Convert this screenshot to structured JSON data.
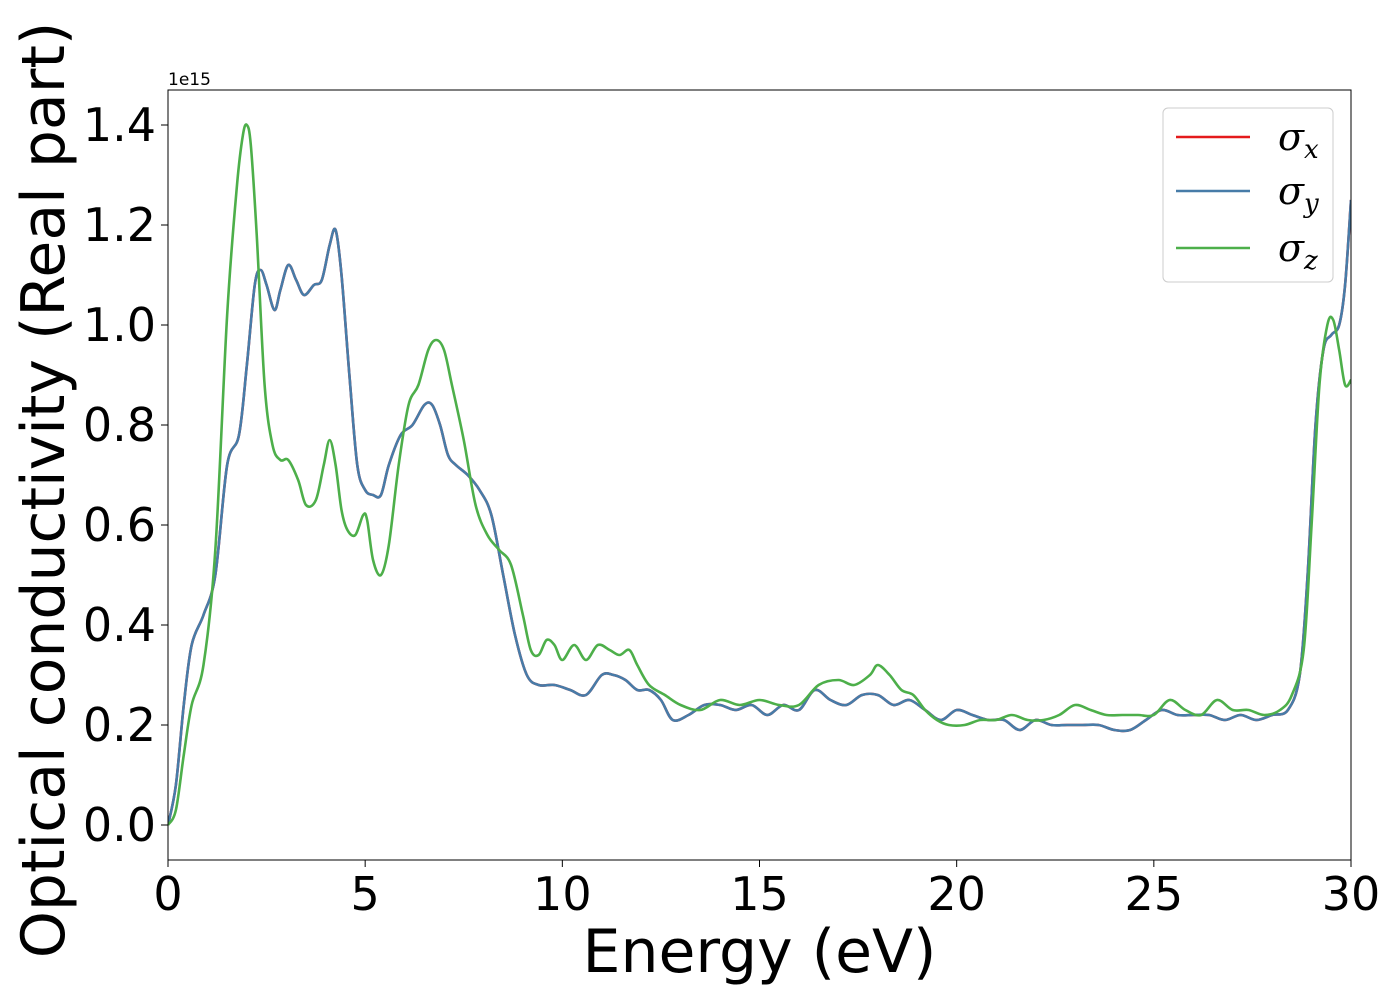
{
  "chart_data": {
    "type": "line",
    "xlabel": "Energy (eV)",
    "ylabel": "Optical conductivity (Real part)",
    "y_offset_label": "1e15",
    "xlim": [
      0,
      30
    ],
    "ylim": [
      -0.07,
      1.47
    ],
    "xticks": [
      0,
      5,
      10,
      15,
      20,
      25,
      30
    ],
    "xtick_labels": [
      "0",
      "5",
      "10",
      "15",
      "20",
      "25",
      "30"
    ],
    "yticks": [
      0.0,
      0.2,
      0.4,
      0.6,
      0.8,
      1.0,
      1.2,
      1.4
    ],
    "ytick_labels": [
      "0.0",
      "0.2",
      "0.4",
      "0.6",
      "0.8",
      "1.0",
      "1.2",
      "1.4"
    ],
    "grid": false,
    "legend_position": "top-right",
    "series": [
      {
        "name": "σx",
        "symbol": "σ",
        "subscript": "x",
        "color": "#e41a1c",
        "x": [
          0,
          0.2,
          0.4,
          0.6,
          0.9,
          1.2,
          1.5,
          1.8,
          2.0,
          2.2,
          2.35,
          2.5,
          2.7,
          2.85,
          3.05,
          3.25,
          3.45,
          3.7,
          3.9,
          4.1,
          4.25,
          4.4,
          4.6,
          4.8,
          5.0,
          5.2,
          5.4,
          5.6,
          5.9,
          6.2,
          6.5,
          6.7,
          6.9,
          7.1,
          7.3,
          7.6,
          7.9,
          8.2,
          8.5,
          8.8,
          9.1,
          9.4,
          9.8,
          10.2,
          10.6,
          11.0,
          11.3,
          11.6,
          11.9,
          12.2,
          12.5,
          12.8,
          13.2,
          13.6,
          14.0,
          14.4,
          14.8,
          15.2,
          15.6,
          16.0,
          16.4,
          16.8,
          17.2,
          17.6,
          18.0,
          18.4,
          18.8,
          19.2,
          19.6,
          20.0,
          20.4,
          20.8,
          21.2,
          21.6,
          22.0,
          22.4,
          22.8,
          23.2,
          23.6,
          24.0,
          24.4,
          24.8,
          25.2,
          25.6,
          26.0,
          26.4,
          26.8,
          27.2,
          27.6,
          28.0,
          28.4,
          28.7,
          28.9,
          29.1,
          29.3,
          29.5,
          29.7,
          29.85,
          30.0
        ],
        "y": [
          0.0,
          0.08,
          0.24,
          0.36,
          0.42,
          0.5,
          0.72,
          0.78,
          0.92,
          1.08,
          1.11,
          1.08,
          1.03,
          1.07,
          1.12,
          1.09,
          1.06,
          1.08,
          1.09,
          1.16,
          1.19,
          1.1,
          0.9,
          0.72,
          0.67,
          0.66,
          0.66,
          0.72,
          0.78,
          0.8,
          0.84,
          0.84,
          0.8,
          0.74,
          0.72,
          0.7,
          0.67,
          0.62,
          0.5,
          0.38,
          0.3,
          0.28,
          0.28,
          0.27,
          0.26,
          0.3,
          0.3,
          0.29,
          0.27,
          0.27,
          0.25,
          0.21,
          0.22,
          0.24,
          0.24,
          0.23,
          0.24,
          0.22,
          0.24,
          0.23,
          0.27,
          0.25,
          0.24,
          0.26,
          0.26,
          0.24,
          0.25,
          0.23,
          0.21,
          0.23,
          0.22,
          0.21,
          0.21,
          0.19,
          0.21,
          0.2,
          0.2,
          0.2,
          0.2,
          0.19,
          0.19,
          0.21,
          0.23,
          0.22,
          0.22,
          0.22,
          0.21,
          0.22,
          0.21,
          0.22,
          0.23,
          0.3,
          0.5,
          0.8,
          0.95,
          0.98,
          1.0,
          1.08,
          1.25
        ]
      },
      {
        "name": "σy",
        "symbol": "σ",
        "subscript": "y",
        "color": "#477ca8",
        "x": [
          0,
          0.2,
          0.4,
          0.6,
          0.9,
          1.2,
          1.5,
          1.8,
          2.0,
          2.2,
          2.35,
          2.5,
          2.7,
          2.85,
          3.05,
          3.25,
          3.45,
          3.7,
          3.9,
          4.1,
          4.25,
          4.4,
          4.6,
          4.8,
          5.0,
          5.2,
          5.4,
          5.6,
          5.9,
          6.2,
          6.5,
          6.7,
          6.9,
          7.1,
          7.3,
          7.6,
          7.9,
          8.2,
          8.5,
          8.8,
          9.1,
          9.4,
          9.8,
          10.2,
          10.6,
          11.0,
          11.3,
          11.6,
          11.9,
          12.2,
          12.5,
          12.8,
          13.2,
          13.6,
          14.0,
          14.4,
          14.8,
          15.2,
          15.6,
          16.0,
          16.4,
          16.8,
          17.2,
          17.6,
          18.0,
          18.4,
          18.8,
          19.2,
          19.6,
          20.0,
          20.4,
          20.8,
          21.2,
          21.6,
          22.0,
          22.4,
          22.8,
          23.2,
          23.6,
          24.0,
          24.4,
          24.8,
          25.2,
          25.6,
          26.0,
          26.4,
          26.8,
          27.2,
          27.6,
          28.0,
          28.4,
          28.7,
          28.9,
          29.1,
          29.3,
          29.5,
          29.7,
          29.85,
          30.0
        ],
        "y": [
          0.0,
          0.08,
          0.24,
          0.36,
          0.42,
          0.5,
          0.72,
          0.78,
          0.92,
          1.08,
          1.11,
          1.08,
          1.03,
          1.07,
          1.12,
          1.09,
          1.06,
          1.08,
          1.09,
          1.16,
          1.19,
          1.1,
          0.9,
          0.72,
          0.67,
          0.66,
          0.66,
          0.72,
          0.78,
          0.8,
          0.84,
          0.84,
          0.8,
          0.74,
          0.72,
          0.7,
          0.67,
          0.62,
          0.5,
          0.38,
          0.3,
          0.28,
          0.28,
          0.27,
          0.26,
          0.3,
          0.3,
          0.29,
          0.27,
          0.27,
          0.25,
          0.21,
          0.22,
          0.24,
          0.24,
          0.23,
          0.24,
          0.22,
          0.24,
          0.23,
          0.27,
          0.25,
          0.24,
          0.26,
          0.26,
          0.24,
          0.25,
          0.23,
          0.21,
          0.23,
          0.22,
          0.21,
          0.21,
          0.19,
          0.21,
          0.2,
          0.2,
          0.2,
          0.2,
          0.19,
          0.19,
          0.21,
          0.23,
          0.22,
          0.22,
          0.22,
          0.21,
          0.22,
          0.21,
          0.22,
          0.23,
          0.3,
          0.5,
          0.8,
          0.95,
          0.98,
          1.0,
          1.08,
          1.25
        ]
      },
      {
        "name": "σz",
        "symbol": "σ",
        "subscript": "z",
        "color": "#4daf4a",
        "x": [
          0,
          0.2,
          0.4,
          0.6,
          0.9,
          1.2,
          1.5,
          1.75,
          1.9,
          2.0,
          2.1,
          2.25,
          2.45,
          2.65,
          2.85,
          3.05,
          3.3,
          3.5,
          3.75,
          3.95,
          4.1,
          4.25,
          4.4,
          4.55,
          4.75,
          4.95,
          5.05,
          5.2,
          5.4,
          5.6,
          5.85,
          6.1,
          6.35,
          6.6,
          6.8,
          7.0,
          7.2,
          7.5,
          7.8,
          8.1,
          8.4,
          8.7,
          9.0,
          9.2,
          9.4,
          9.6,
          9.8,
          10.0,
          10.3,
          10.6,
          10.9,
          11.2,
          11.45,
          11.7,
          11.9,
          12.2,
          12.6,
          13.0,
          13.5,
          14.0,
          14.5,
          15.0,
          15.5,
          16.0,
          16.5,
          17.0,
          17.4,
          17.8,
          18.0,
          18.3,
          18.6,
          18.9,
          19.2,
          19.5,
          19.8,
          20.2,
          20.6,
          21.0,
          21.4,
          21.8,
          22.2,
          22.6,
          23.0,
          23.4,
          23.8,
          24.2,
          24.6,
          25.0,
          25.4,
          25.8,
          26.2,
          26.6,
          27.0,
          27.4,
          27.8,
          28.2,
          28.5,
          28.8,
          29.0,
          29.2,
          29.4,
          29.55,
          29.7,
          29.85,
          30.0
        ],
        "y": [
          0.0,
          0.03,
          0.14,
          0.24,
          0.32,
          0.55,
          1.02,
          1.28,
          1.38,
          1.4,
          1.36,
          1.18,
          0.88,
          0.76,
          0.73,
          0.73,
          0.69,
          0.64,
          0.65,
          0.72,
          0.77,
          0.72,
          0.63,
          0.59,
          0.58,
          0.62,
          0.61,
          0.53,
          0.5,
          0.56,
          0.72,
          0.84,
          0.88,
          0.95,
          0.97,
          0.95,
          0.88,
          0.77,
          0.64,
          0.58,
          0.55,
          0.52,
          0.42,
          0.35,
          0.34,
          0.37,
          0.36,
          0.33,
          0.36,
          0.33,
          0.36,
          0.35,
          0.34,
          0.35,
          0.32,
          0.28,
          0.26,
          0.24,
          0.23,
          0.25,
          0.24,
          0.25,
          0.24,
          0.24,
          0.28,
          0.29,
          0.28,
          0.3,
          0.32,
          0.3,
          0.27,
          0.26,
          0.23,
          0.21,
          0.2,
          0.2,
          0.21,
          0.21,
          0.22,
          0.21,
          0.21,
          0.22,
          0.24,
          0.23,
          0.22,
          0.22,
          0.22,
          0.22,
          0.25,
          0.23,
          0.22,
          0.25,
          0.23,
          0.23,
          0.22,
          0.23,
          0.26,
          0.35,
          0.6,
          0.88,
          1.0,
          1.01,
          0.95,
          0.88,
          0.89
        ]
      }
    ]
  }
}
